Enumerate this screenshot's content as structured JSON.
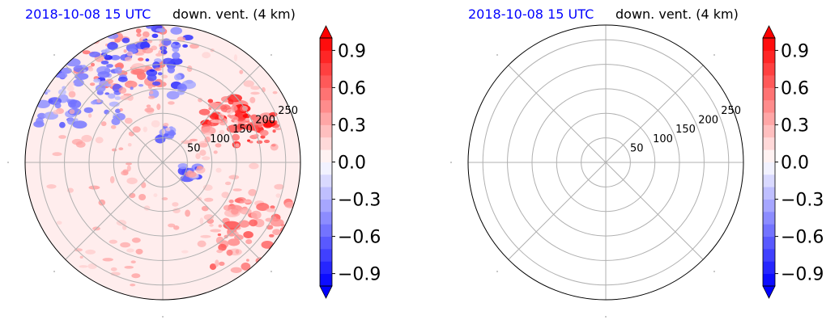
{
  "panels": [
    {
      "title_date": "2018-10-08 15 UTC",
      "title_var": "down. vent. (4 km)",
      "has_field": true
    },
    {
      "title_date": "2018-10-08 15 UTC",
      "title_var": "down. vent. (4 km)",
      "has_field": false
    }
  ],
  "chart_data": [
    {
      "type": "heatmap",
      "projection": "polar",
      "title": "2018-10-08 15 UTC down. vent. (4 km)",
      "radial_ticks": [
        50,
        100,
        150,
        200,
        250
      ],
      "radial_max": 280,
      "angular_gridlines_deg": [
        0,
        45,
        90,
        135,
        180,
        225,
        270,
        315
      ],
      "grid": true,
      "colormap": "bwr",
      "colorbar": {
        "min": -1.0,
        "max": 1.0,
        "extend": "both",
        "levels": 20,
        "ticks": [
          "−0.9",
          "−0.6",
          "−0.3",
          "0.0",
          "0.3",
          "0.6",
          "0.9"
        ],
        "tick_values": [
          -0.9,
          -0.6,
          -0.3,
          0.0,
          0.3,
          0.6,
          0.9
        ]
      },
      "features": [
        {
          "kind": "positive_cluster",
          "r": 160,
          "theta_deg": 38,
          "max": 1.0
        },
        {
          "kind": "positive_cluster",
          "r": 200,
          "theta_deg": 20,
          "max": 1.0
        },
        {
          "kind": "positive_band",
          "r": 240,
          "theta_deg": 110,
          "max": 0.6
        },
        {
          "kind": "positive_band",
          "r": 230,
          "theta_deg": -40,
          "max": 0.7
        },
        {
          "kind": "negative_band",
          "r": 210,
          "theta_deg": 100,
          "min": -0.9
        },
        {
          "kind": "negative_band",
          "r": 230,
          "theta_deg": 140,
          "min": -0.7
        },
        {
          "kind": "negative_spot",
          "r": 60,
          "theta_deg": -20,
          "min": -0.8
        },
        {
          "kind": "negative_spot",
          "r": 60,
          "theta_deg": 80,
          "min": -0.7
        }
      ]
    },
    {
      "type": "heatmap",
      "projection": "polar",
      "title": "2018-10-08 15 UTC down. vent. (4 km)",
      "radial_ticks": [
        50,
        100,
        150,
        200,
        250
      ],
      "radial_max": 280,
      "angular_gridlines_deg": [
        0,
        45,
        90,
        135,
        180,
        225,
        270,
        315
      ],
      "grid": true,
      "colormap": "bwr",
      "colorbar": {
        "min": -1.0,
        "max": 1.0,
        "extend": "both",
        "levels": 20,
        "ticks": [
          "−0.9",
          "−0.6",
          "−0.3",
          "0.0",
          "0.3",
          "0.6",
          "0.9"
        ],
        "tick_values": [
          -0.9,
          -0.6,
          -0.3,
          0.0,
          0.3,
          0.6,
          0.9
        ]
      },
      "features": []
    }
  ]
}
